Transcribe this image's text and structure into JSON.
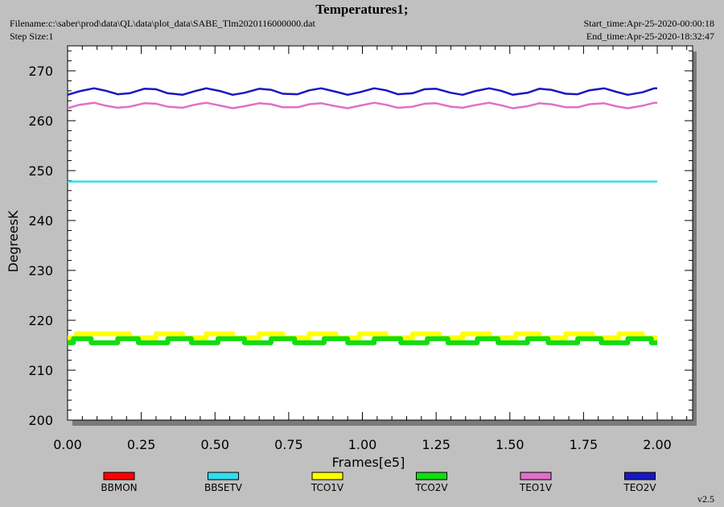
{
  "header": {
    "title": "Temperatures1;",
    "filename": "Filename:c:\\saber\\prod\\data\\QL\\data\\plot_data\\SABE_Tlm2020116000000.dat",
    "step_size": "Step Size:1",
    "start_time": "Start_time:Apr-25-2020-00:00:18",
    "end_time": "End_time:Apr-25-2020-18:32:47"
  },
  "footer": {
    "version": "v2.5"
  },
  "chart_data": {
    "type": "line",
    "title": "Temperatures1;",
    "xlabel": "Frames[e5]",
    "ylabel": "DegreesK",
    "xlim": [
      0,
      2.12
    ],
    "ylim": [
      200,
      275
    ],
    "x_ticks": [
      "0.00",
      "0.25",
      "0.50",
      "0.75",
      "1.00",
      "1.25",
      "1.50",
      "1.75",
      "2.00"
    ],
    "y_ticks": [
      "200",
      "210",
      "220",
      "230",
      "240",
      "250",
      "260",
      "270"
    ],
    "grid": false,
    "legend_position": "bottom",
    "series": [
      {
        "name": "BBMON",
        "color": "#ff0000",
        "x": [],
        "y": []
      },
      {
        "name": "BBSETV",
        "color": "#33ddee",
        "x": [
          0.0,
          2.0
        ],
        "y": [
          247.8,
          247.8
        ]
      },
      {
        "name": "TCO1V",
        "color": "#ffff00",
        "x": [
          0.0,
          0.03,
          0.03,
          0.21,
          0.21,
          0.3,
          0.3,
          0.39,
          0.39,
          0.47,
          0.47,
          0.56,
          0.56,
          0.65,
          0.65,
          0.73,
          0.73,
          0.82,
          0.82,
          0.91,
          0.91,
          0.99,
          0.99,
          1.08,
          1.08,
          1.17,
          1.17,
          1.26,
          1.26,
          1.34,
          1.34,
          1.43,
          1.43,
          1.52,
          1.52,
          1.6,
          1.6,
          1.69,
          1.69,
          1.78,
          1.78,
          1.87,
          1.87,
          1.95,
          1.95,
          2.0
        ],
        "y": [
          216.5,
          216.5,
          217.3,
          217.3,
          216.5,
          216.5,
          217.3,
          217.3,
          216.5,
          216.5,
          217.3,
          217.3,
          216.5,
          216.5,
          217.3,
          217.3,
          216.5,
          216.5,
          217.3,
          217.3,
          216.5,
          216.5,
          217.3,
          217.3,
          216.5,
          216.5,
          217.3,
          217.3,
          216.5,
          216.5,
          217.3,
          217.3,
          216.5,
          216.5,
          217.3,
          217.3,
          216.5,
          216.5,
          217.3,
          217.3,
          216.5,
          216.5,
          217.3,
          217.3,
          216.5,
          216.5
        ]
      },
      {
        "name": "TCO2V",
        "color": "#11dd11",
        "x": [
          0.0,
          0.02,
          0.02,
          0.08,
          0.08,
          0.17,
          0.17,
          0.24,
          0.24,
          0.34,
          0.34,
          0.42,
          0.42,
          0.51,
          0.51,
          0.6,
          0.6,
          0.69,
          0.69,
          0.77,
          0.77,
          0.87,
          0.87,
          0.95,
          0.95,
          1.04,
          1.04,
          1.13,
          1.13,
          1.22,
          1.22,
          1.29,
          1.29,
          1.39,
          1.39,
          1.46,
          1.46,
          1.56,
          1.56,
          1.63,
          1.63,
          1.73,
          1.73,
          1.81,
          1.81,
          1.9,
          1.9,
          1.98,
          1.98,
          2.0
        ],
        "y": [
          215.5,
          215.5,
          216.3,
          216.3,
          215.5,
          215.5,
          216.3,
          216.3,
          215.5,
          215.5,
          216.3,
          216.3,
          215.5,
          215.5,
          216.3,
          216.3,
          215.5,
          215.5,
          216.3,
          216.3,
          215.5,
          215.5,
          216.3,
          216.3,
          215.5,
          215.5,
          216.3,
          216.3,
          215.5,
          215.5,
          216.3,
          216.3,
          215.5,
          215.5,
          216.3,
          216.3,
          215.5,
          215.5,
          216.3,
          216.3,
          215.5,
          215.5,
          216.3,
          216.3,
          215.5,
          215.5,
          216.3,
          216.3,
          215.5,
          215.5
        ]
      },
      {
        "name": "TEO1V",
        "color": "#e070c8",
        "x": [
          0.0,
          0.04,
          0.09,
          0.13,
          0.17,
          0.21,
          0.26,
          0.3,
          0.34,
          0.39,
          0.43,
          0.47,
          0.52,
          0.56,
          0.6,
          0.65,
          0.69,
          0.73,
          0.78,
          0.82,
          0.86,
          0.91,
          0.95,
          0.99,
          1.04,
          1.08,
          1.12,
          1.17,
          1.21,
          1.25,
          1.3,
          1.34,
          1.38,
          1.43,
          1.47,
          1.51,
          1.56,
          1.6,
          1.64,
          1.69,
          1.73,
          1.77,
          1.82,
          1.86,
          1.9,
          1.95,
          1.99,
          2.0
        ],
        "y": [
          262.5,
          263.2,
          263.6,
          263.0,
          262.6,
          262.8,
          263.5,
          263.4,
          262.8,
          262.6,
          263.2,
          263.6,
          263.0,
          262.5,
          262.9,
          263.5,
          263.3,
          262.7,
          262.7,
          263.3,
          263.5,
          262.9,
          262.5,
          263.0,
          263.6,
          263.2,
          262.6,
          262.8,
          263.4,
          263.5,
          262.8,
          262.6,
          263.1,
          263.6,
          263.1,
          262.5,
          262.9,
          263.5,
          263.3,
          262.7,
          262.7,
          263.3,
          263.5,
          262.9,
          262.5,
          263.0,
          263.6,
          263.6
        ]
      },
      {
        "name": "TEO2V",
        "color": "#1818c0",
        "x": [
          0.0,
          0.04,
          0.09,
          0.13,
          0.17,
          0.21,
          0.26,
          0.3,
          0.34,
          0.39,
          0.43,
          0.47,
          0.52,
          0.56,
          0.6,
          0.65,
          0.69,
          0.73,
          0.78,
          0.82,
          0.86,
          0.91,
          0.95,
          0.99,
          1.04,
          1.08,
          1.12,
          1.17,
          1.21,
          1.25,
          1.3,
          1.34,
          1.38,
          1.43,
          1.47,
          1.51,
          1.56,
          1.6,
          1.64,
          1.69,
          1.73,
          1.77,
          1.82,
          1.86,
          1.9,
          1.95,
          1.99,
          2.0
        ],
        "y": [
          265.2,
          265.9,
          266.5,
          266.0,
          265.3,
          265.5,
          266.4,
          266.3,
          265.5,
          265.2,
          265.9,
          266.5,
          265.9,
          265.2,
          265.6,
          266.4,
          266.2,
          265.4,
          265.3,
          266.1,
          266.5,
          265.8,
          265.2,
          265.7,
          266.5,
          266.1,
          265.3,
          265.5,
          266.3,
          266.4,
          265.6,
          265.2,
          265.9,
          266.5,
          266.0,
          265.2,
          265.6,
          266.4,
          266.2,
          265.4,
          265.3,
          266.1,
          266.5,
          265.8,
          265.2,
          265.7,
          266.5,
          266.5
        ]
      }
    ]
  }
}
